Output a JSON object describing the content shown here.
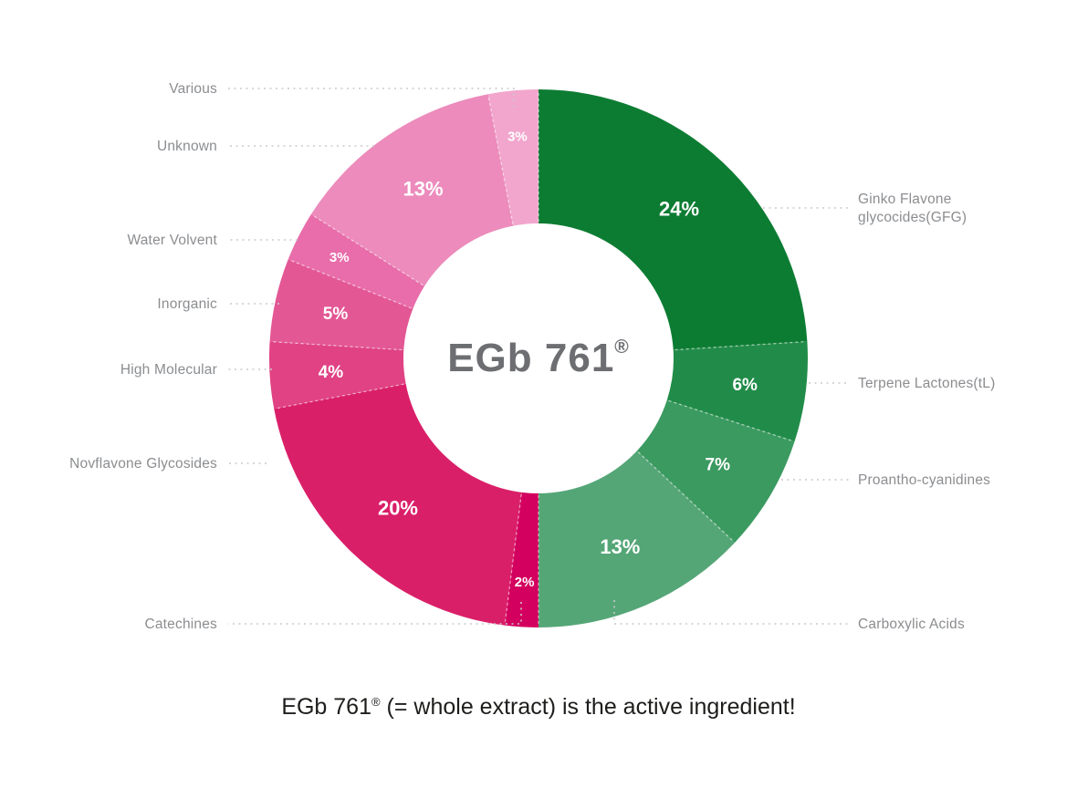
{
  "center": {
    "title": "EGb 761",
    "registered": "®"
  },
  "caption": {
    "pre": "EGb 761",
    "registered": "®",
    "post": " (= whole extract) is the active ingredient!"
  },
  "colors": {
    "background": "#ffffff",
    "label_text": "#8b8d90",
    "leader_line": "#c9cacb",
    "center_text": "#6d6e71",
    "caption_text": "#1d1d1b",
    "percent_text": "#ffffff"
  },
  "chart_data": {
    "type": "pie",
    "subtype": "donut",
    "center_label": "EGb 761®",
    "unit": "%",
    "start_angle_deg": 0,
    "direction": "clockwise",
    "legend_position": "callout-labels-left-right",
    "slices": [
      {
        "label": "Ginko Flavone glycocides(GFG)",
        "label_lines": [
          "Ginko Flavone",
          "glycocides(GFG)"
        ],
        "value": 24,
        "value_label": "24%",
        "color": "#0d7c33",
        "side": "right"
      },
      {
        "label": "Terpene Lactones(tL)",
        "value": 6,
        "value_label": "6%",
        "color": "#218c49",
        "side": "right"
      },
      {
        "label": "Proantho-cyanidines",
        "value": 7,
        "value_label": "7%",
        "color": "#3b9a60",
        "side": "right"
      },
      {
        "label": "Carboxylic Acids",
        "value": 13,
        "value_label": "13%",
        "color": "#55a677",
        "side": "right"
      },
      {
        "label": "Catechines",
        "value": 2,
        "value_label": "2%",
        "color": "#d3005f",
        "side": "left"
      },
      {
        "label": "Novflavone Glycosides",
        "value": 20,
        "value_label": "20%",
        "color": "#da1f69",
        "side": "left"
      },
      {
        "label": "High Molecular",
        "value": 4,
        "value_label": "4%",
        "color": "#e04284",
        "side": "left"
      },
      {
        "label": "Inorganic",
        "value": 5,
        "value_label": "5%",
        "color": "#e35795",
        "side": "left"
      },
      {
        "label": "Water Volvent",
        "value": 3,
        "value_label": "3%",
        "color": "#e86daa",
        "side": "left"
      },
      {
        "label": "Unknown",
        "value": 13,
        "value_label": "13%",
        "color": "#ec8bbc",
        "side": "left"
      },
      {
        "label": "Various",
        "value": 3,
        "value_label": "3%",
        "color": "#f2a6cd",
        "side": "left"
      }
    ]
  }
}
